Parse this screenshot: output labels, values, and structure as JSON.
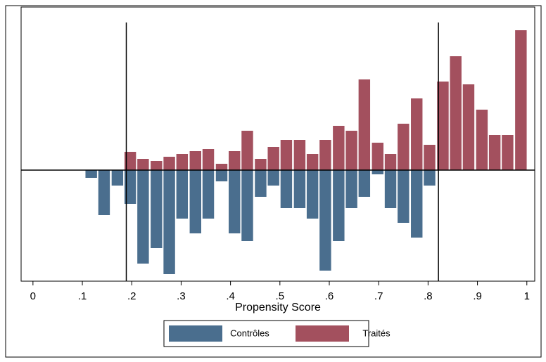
{
  "chart_data": {
    "type": "mirror-histogram",
    "x_label": "Propensity Score",
    "x": [
      0.118,
      0.144,
      0.171,
      0.197,
      0.223,
      0.25,
      0.276,
      0.302,
      0.329,
      0.355,
      0.382,
      0.408,
      0.434,
      0.461,
      0.487,
      0.513,
      0.54,
      0.566,
      0.592,
      0.619,
      0.645,
      0.671,
      0.698,
      0.724,
      0.75,
      0.777,
      0.803,
      0.83,
      0.856,
      0.882,
      0.909,
      0.935,
      0.961,
      0.988
    ],
    "series": [
      {
        "name": "Contrôles",
        "color": "#4a6e8e",
        "values": [
          -11,
          -64,
          -22,
          -48,
          -133,
          -111,
          -148,
          -69,
          -90,
          -69,
          -16,
          -90,
          -101,
          -38,
          -22,
          -54,
          -54,
          -69,
          -143,
          -101,
          -54,
          -38,
          -6,
          -54,
          -75,
          -96,
          -22,
          0,
          0,
          0,
          0,
          0,
          0,
          0
        ]
      },
      {
        "name": "Traités",
        "color": "#a3505e",
        "values": [
          0,
          0,
          0,
          26,
          16,
          13,
          19,
          23,
          27,
          30,
          9,
          27,
          56,
          16,
          33,
          43,
          43,
          23,
          43,
          63,
          56,
          129,
          39,
          23,
          66,
          102,
          36,
          126,
          162,
          122,
          86,
          50,
          50,
          199
        ]
      }
    ],
    "xlim": [
      -0.024,
      1.016
    ],
    "ylim": [
      -158,
      212
    ],
    "xticks": [
      0,
      {
        "value": 0.1,
        "label": ".1"
      },
      {
        "value": 0.2,
        "label": ".2"
      },
      {
        "value": 0.3,
        "label": ".3"
      },
      {
        "value": 0.4,
        "label": ".4"
      },
      {
        "value": 0.5,
        "label": ".5"
      },
      {
        "value": 0.6,
        "label": ".6"
      },
      {
        "value": 0.7,
        "label": ".7"
      },
      {
        "value": 0.8,
        "label": ".8"
      },
      {
        "value": 0.9,
        "label": ".9"
      },
      1
    ],
    "vlines": [
      0.189,
      0.821
    ]
  }
}
